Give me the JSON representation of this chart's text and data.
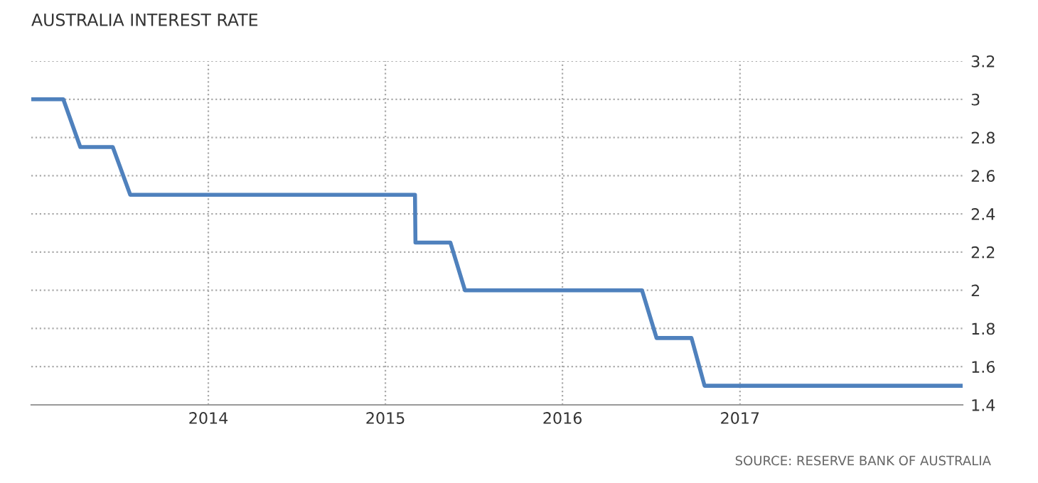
{
  "chart_data": {
    "type": "line",
    "title": "AUSTRALIA INTEREST RATE",
    "x": [
      "2013-01-01",
      "2013-03-08",
      "2013-04-12",
      "2013-06-18",
      "2013-07-24",
      "2015-03-03",
      "2015-03-04",
      "2015-05-15",
      "2015-06-14",
      "2016-06-13",
      "2016-07-13",
      "2016-09-23",
      "2016-10-20",
      "2018-04-05"
    ],
    "series": [
      {
        "color": "#4f81bd",
        "values": [
          3,
          3,
          2.75,
          2.75,
          2.5,
          2.5,
          2.25,
          2.25,
          2,
          2,
          1.75,
          1.75,
          1.5,
          1.5
        ]
      }
    ],
    "xlim": [
      "2013-01-01",
      "2018-04-05"
    ],
    "xticks": [
      "2014",
      "2015",
      "2016",
      "2017"
    ],
    "ylim": [
      1.4,
      3.2
    ],
    "yticks": [
      1.4,
      1.6,
      1.8,
      2,
      2.2,
      2.4,
      2.6,
      2.8,
      3,
      3.2
    ],
    "grid": true,
    "line_style": "solid",
    "marker": "none",
    "annotations": [
      "SOURCE: RESERVE BANK OF AUSTRALIA"
    ]
  }
}
